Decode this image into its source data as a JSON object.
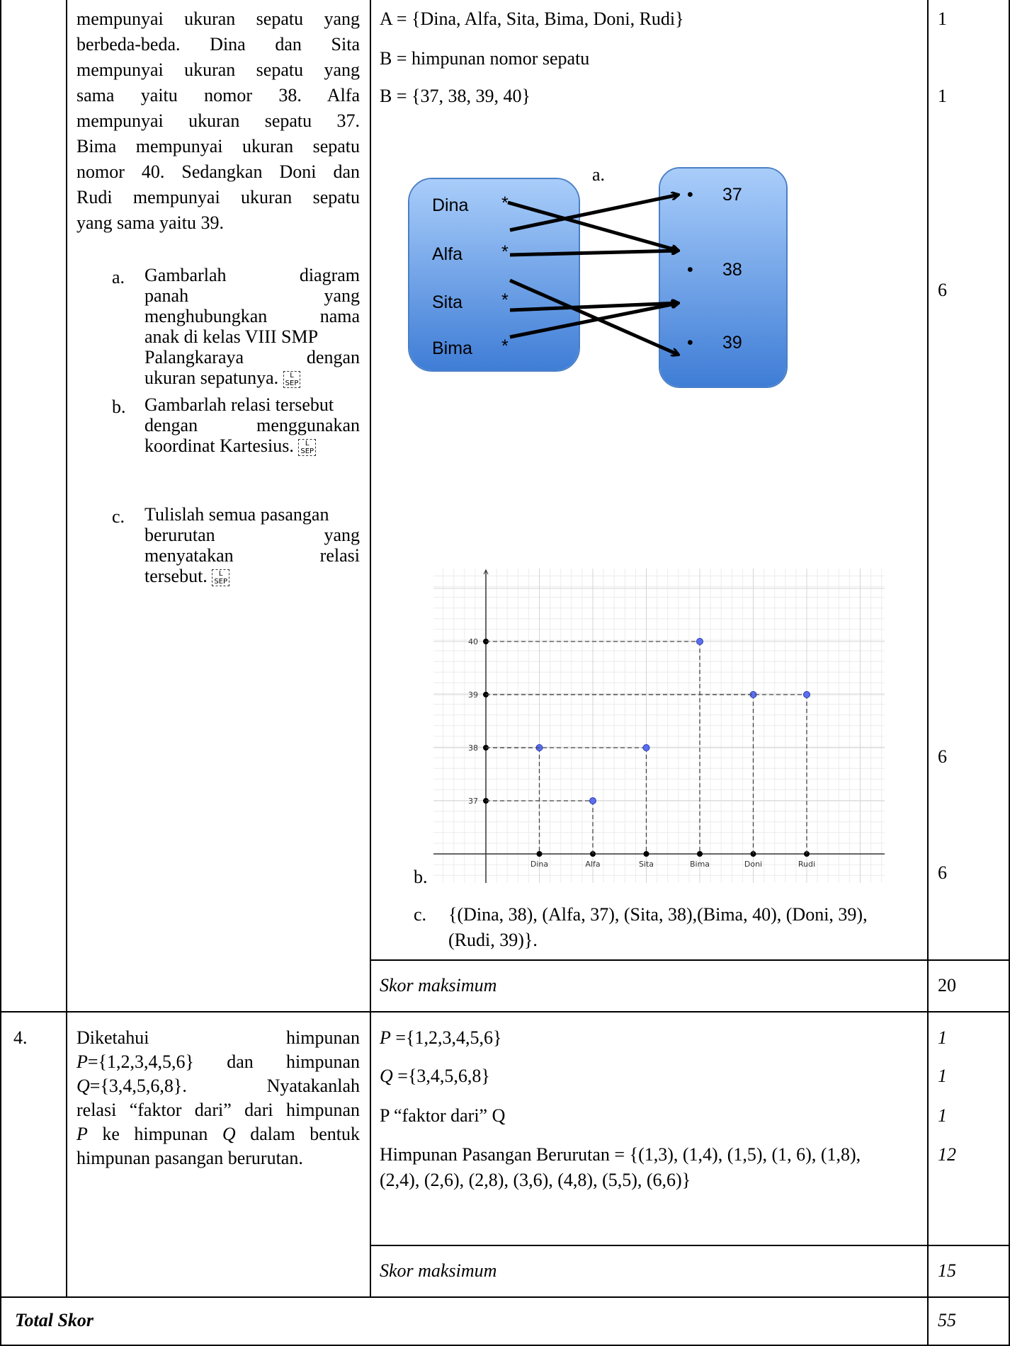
{
  "q3": {
    "question_lines": [
      "mempunyai ukuran sepatu yang",
      "berbeda-beda. Dina dan Sita",
      "mempunyai ukuran sepatu yang",
      "sama yaitu nomor 38. Alfa",
      "mempunyai ukuran sepatu 37.",
      "Bima mempunyai ukuran sepatu",
      "nomor 40. Sedangkan Doni dan",
      "Rudi mempunyai ukuran sepatu",
      "yang sama yaitu 39."
    ],
    "subitems": [
      {
        "marker": "a.",
        "lines": [
          "Gambarlah diagram",
          "panah yang",
          "menghubungkan nama",
          "anak di kelas VIII SMP",
          "Palangkaraya dengan",
          "ukuran sepatunya."
        ]
      },
      {
        "marker": "b.",
        "lines": [
          "Gambarlah relasi tersebut",
          "dengan menggunakan",
          "koordinat Kartesius."
        ]
      },
      {
        "marker": "c.",
        "lines": [
          "Tulislah semua pasangan",
          "berurutan yang",
          "menyatakan relasi",
          "tersebut."
        ]
      }
    ],
    "sep_glyph": {
      "top": "L",
      "bottom": "SEP"
    },
    "answer": {
      "set_a": "A = {Dina, Alfa, Sita, Bima, Doni, Rudi}",
      "set_b_def": "B = himpunan nomor sepatu",
      "set_b": "B = {37, 38, 39, 40}",
      "label_a": "a.",
      "label_b": "b.",
      "label_c": "c.",
      "pairs_line1": "{(Dina, 38), (Alfa, 37), (Sita, 38),(Bima, 40), (Doni, 39),",
      "pairs_line2": "(Rudi, 39)}.",
      "max_label": "Skor maksimum"
    },
    "scores": {
      "s1": "1",
      "s2": "1",
      "s3": "6",
      "s4": "6",
      "s5": "6",
      "max": "20"
    },
    "arrow_diagram": {
      "domain": [
        "Dina",
        "Alfa",
        "Sita",
        "Bima"
      ],
      "codomain": [
        "37",
        "38",
        "39"
      ],
      "domain_marker": "*",
      "codomain_marker": "•",
      "colors": {
        "oval_top": "#a9cdfa",
        "oval_bottom": "#3f7dd6",
        "oval_border": "#4a7fc5"
      }
    }
  },
  "chart_data": {
    "type": "scatter",
    "categories": [
      "Dina",
      "Alfa",
      "Sita",
      "Bima",
      "Doni",
      "Rudi"
    ],
    "y_ticks": [
      37,
      38,
      39,
      40
    ],
    "points": [
      {
        "x": "Dina",
        "y": 38
      },
      {
        "x": "Alfa",
        "y": 37
      },
      {
        "x": "Sita",
        "y": 38
      },
      {
        "x": "Bima",
        "y": 40
      },
      {
        "x": "Doni",
        "y": 39
      },
      {
        "x": "Rudi",
        "y": 39
      }
    ],
    "ylim": [
      36,
      41
    ],
    "grid": true,
    "point_color": "#5a6ff0",
    "axis_point_color": "#000000"
  },
  "q4": {
    "number": "4.",
    "question_lines": [
      {
        "segments": [
          {
            "t": "Diketahui himpunan",
            "i": false
          }
        ]
      },
      {
        "segments": [
          {
            "t": "P",
            "i": true
          },
          {
            "t": "={1,2,3,4,5,6} dan himpunan",
            "i": false
          }
        ]
      },
      {
        "segments": [
          {
            "t": "Q",
            "i": true
          },
          {
            "t": "={3,4,5,6,8}. Nyatakanlah",
            "i": false
          }
        ]
      },
      {
        "segments": [
          {
            "t": "relasi “faktor dari” dari himpunan",
            "i": false
          }
        ]
      },
      {
        "segments": [
          {
            "t": "P",
            "i": true
          },
          {
            "t": " ke himpunan ",
            "i": false
          },
          {
            "t": "Q",
            "i": true
          },
          {
            "t": " dalam bentuk",
            "i": false
          }
        ]
      },
      {
        "segments": [
          {
            "t": "himpunan pasangan berurutan.",
            "i": false
          }
        ]
      }
    ],
    "answer": {
      "p_var": "P",
      "p_val": " ={1,2,3,4,5,6}",
      "q_var": "Q",
      "q_val": " ={3,4,5,6,8}",
      "relation": "P “faktor dari” Q",
      "pairs_line1": "Himpunan Pasangan Berurutan = {(1,3), (1,4), (1,5), (1, 6), (1,8),",
      "pairs_line2": "(2,4), (2,6), (2,8), (3,6), (4,8), (5,5), (6,6)}",
      "max_label": "Skor maksimum"
    },
    "scores": {
      "s1": "1",
      "s2": "1",
      "s3": "1",
      "s4": "12",
      "max": "15"
    }
  },
  "total": {
    "label": "Total Skor",
    "value": "55"
  }
}
